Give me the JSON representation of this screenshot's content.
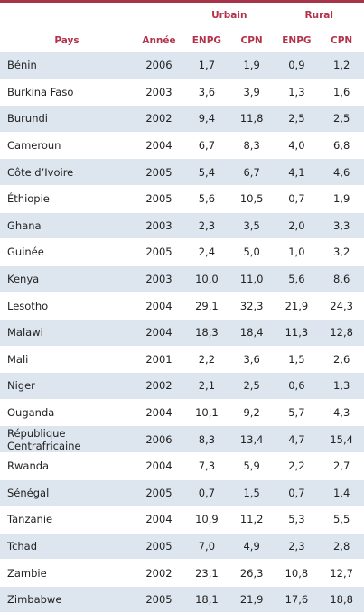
{
  "header": {
    "urbain": "Urbain",
    "rural": "Rural",
    "pays": "Pays",
    "annee": "Année",
    "enpg_u": "ENPG",
    "cpn_u": "CPN",
    "enpg_r": "ENPG",
    "cpn_r": "CPN"
  },
  "rows": [
    {
      "pays": "Bénin",
      "annee": "2006",
      "u_enpg": "1,7",
      "u_cpn": "1,9",
      "r_enpg": "0,9",
      "r_cpn": "1,2"
    },
    {
      "pays": "Burkina Faso",
      "annee": "2003",
      "u_enpg": "3,6",
      "u_cpn": "3,9",
      "r_enpg": "1,3",
      "r_cpn": "1,6"
    },
    {
      "pays": "Burundi",
      "annee": "2002",
      "u_enpg": "9,4",
      "u_cpn": "11,8",
      "r_enpg": "2,5",
      "r_cpn": "2,5"
    },
    {
      "pays": "Cameroun",
      "annee": "2004",
      "u_enpg": "6,7",
      "u_cpn": "8,3",
      "r_enpg": "4,0",
      "r_cpn": "6,8"
    },
    {
      "pays": "Côte d’Ivoire",
      "annee": "2005",
      "u_enpg": "5,4",
      "u_cpn": "6,7",
      "r_enpg": "4,1",
      "r_cpn": "4,6"
    },
    {
      "pays": "Éthiopie",
      "annee": "2005",
      "u_enpg": "5,6",
      "u_cpn": "10,5",
      "r_enpg": "0,7",
      "r_cpn": "1,9"
    },
    {
      "pays": "Ghana",
      "annee": "2003",
      "u_enpg": "2,3",
      "u_cpn": "3,5",
      "r_enpg": "2,0",
      "r_cpn": "3,3"
    },
    {
      "pays": "Guinée",
      "annee": "2005",
      "u_enpg": "2,4",
      "u_cpn": "5,0",
      "r_enpg": "1,0",
      "r_cpn": "3,2"
    },
    {
      "pays": "Kenya",
      "annee": "2003",
      "u_enpg": "10,0",
      "u_cpn": "11,0",
      "r_enpg": "5,6",
      "r_cpn": "8,6"
    },
    {
      "pays": "Lesotho",
      "annee": "2004",
      "u_enpg": "29,1",
      "u_cpn": "32,3",
      "r_enpg": "21,9",
      "r_cpn": "24,3"
    },
    {
      "pays": "Malawi",
      "annee": "2004",
      "u_enpg": "18,3",
      "u_cpn": "18,4",
      "r_enpg": "11,3",
      "r_cpn": "12,8"
    },
    {
      "pays": "Mali",
      "annee": "2001",
      "u_enpg": "2,2",
      "u_cpn": "3,6",
      "r_enpg": "1,5",
      "r_cpn": "2,6"
    },
    {
      "pays": "Niger",
      "annee": "2002",
      "u_enpg": "2,1",
      "u_cpn": "2,5",
      "r_enpg": "0,6",
      "r_cpn": "1,3"
    },
    {
      "pays": "Ouganda",
      "annee": "2004",
      "u_enpg": "10,1",
      "u_cpn": "9,2",
      "r_enpg": "5,7",
      "r_cpn": "4,3"
    },
    {
      "pays": "République Centrafricaine",
      "annee": "2006",
      "u_enpg": "8,3",
      "u_cpn": "13,4",
      "r_enpg": "4,7",
      "r_cpn": "15,4"
    },
    {
      "pays": "Rwanda",
      "annee": "2004",
      "u_enpg": "7,3",
      "u_cpn": "5,9",
      "r_enpg": "2,2",
      "r_cpn": "2,7"
    },
    {
      "pays": "Sénégal",
      "annee": "2005",
      "u_enpg": "0,7",
      "u_cpn": "1,5",
      "r_enpg": "0,7",
      "r_cpn": "1,4"
    },
    {
      "pays": "Tanzanie",
      "annee": "2004",
      "u_enpg": "10,9",
      "u_cpn": "11,2",
      "r_enpg": "5,3",
      "r_cpn": "5,5"
    },
    {
      "pays": "Tchad",
      "annee": "2005",
      "u_enpg": "7,0",
      "u_cpn": "4,9",
      "r_enpg": "2,3",
      "r_cpn": "2,8"
    },
    {
      "pays": "Zambie",
      "annee": "2002",
      "u_enpg": "23,1",
      "u_cpn": "26,3",
      "r_enpg": "10,8",
      "r_cpn": "12,7"
    },
    {
      "pays": "Zimbabwe",
      "annee": "2005",
      "u_enpg": "18,1",
      "u_cpn": "21,9",
      "r_enpg": "17,6",
      "r_cpn": "18,8"
    }
  ]
}
